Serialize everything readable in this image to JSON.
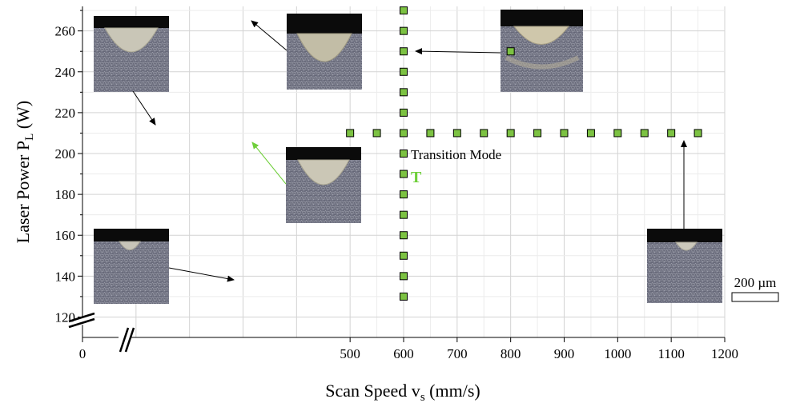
{
  "chart_data": {
    "type": "scatter",
    "xlabel": {
      "main": "Scan Speed v",
      "sub": "s",
      "unit": " (mm/s)"
    },
    "ylabel": {
      "main": "Laser Power P",
      "sub": "L",
      "unit": " (W)"
    },
    "xlim": [
      0,
      1200
    ],
    "ylim": [
      110,
      272
    ],
    "x_ticks": [
      0,
      500,
      600,
      700,
      800,
      900,
      1000,
      1100,
      1200
    ],
    "y_ticks": [
      120,
      140,
      160,
      180,
      200,
      220,
      240,
      260
    ],
    "x_axis_break": true,
    "y_axis_break": true,
    "grid": true,
    "marker_color": "#7cc242",
    "annotation_color": "#6fcf3a",
    "series": [
      {
        "points": [
          [
            500,
            210
          ],
          [
            550,
            210
          ],
          [
            600,
            210
          ],
          [
            650,
            210
          ],
          [
            700,
            210
          ],
          [
            750,
            210
          ],
          [
            800,
            210
          ],
          [
            850,
            210
          ],
          [
            900,
            210
          ],
          [
            950,
            210
          ],
          [
            1000,
            210
          ],
          [
            1050,
            210
          ],
          [
            1100,
            210
          ],
          [
            1150,
            210
          ],
          [
            600,
            130
          ],
          [
            600,
            140
          ],
          [
            600,
            150
          ],
          [
            600,
            160
          ],
          [
            600,
            170
          ],
          [
            600,
            180
          ],
          [
            600,
            190
          ],
          [
            600,
            200
          ],
          [
            600,
            220
          ],
          [
            600,
            230
          ],
          [
            600,
            240
          ],
          [
            600,
            250
          ],
          [
            600,
            260
          ],
          [
            600,
            270
          ],
          [
            800,
            250
          ]
        ]
      }
    ],
    "annotations": {
      "transition_label": "Transition Mode",
      "transition_mark": "T",
      "scale_bar_label": "200 µm"
    },
    "micrographs": [
      {
        "name": "micrograph-500-210",
        "points_to": [
          500,
          210
        ]
      },
      {
        "name": "micrograph-600-270",
        "points_to": [
          600,
          270
        ]
      },
      {
        "name": "micrograph-800-250",
        "points_to": [
          800,
          250
        ]
      },
      {
        "name": "micrograph-600-210",
        "points_to": [
          600,
          210
        ]
      },
      {
        "name": "micrograph-600-130",
        "points_to": [
          600,
          130
        ]
      },
      {
        "name": "micrograph-1150-210",
        "points_to": [
          1150,
          210
        ]
      }
    ]
  }
}
